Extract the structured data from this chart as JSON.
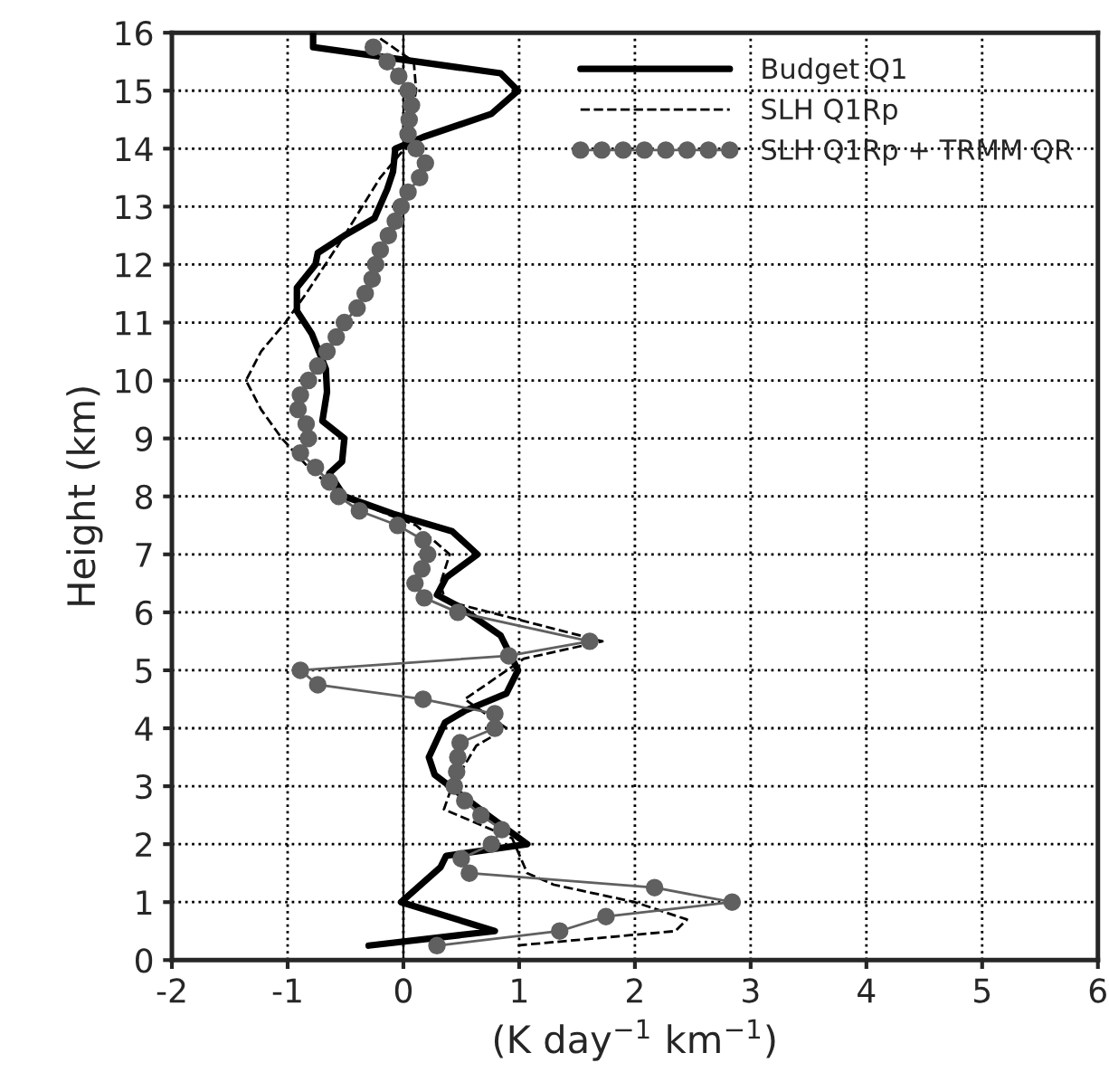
{
  "chart_data": {
    "type": "line",
    "xlabel": "(K day$^{−1}$ km$^{−1}$)",
    "ylabel": "Height (km)",
    "xlim": [
      -2,
      6
    ],
    "xticks": [
      -2,
      -1,
      0,
      1,
      2,
      3,
      4,
      5,
      6
    ],
    "ylim": [
      0,
      16
    ],
    "yticks": [
      0,
      1,
      2,
      3,
      4,
      5,
      6,
      7,
      8,
      9,
      10,
      11,
      12,
      13,
      14,
      15,
      16
    ],
    "grid": true,
    "legend": "top right",
    "ref_lines": [
      {
        "axis": "x",
        "value": 0,
        "color": "#000000",
        "line_style": "solid"
      }
    ],
    "series": [
      {
        "name": "Budget Q1",
        "color": "#000000",
        "line_style": "solid",
        "marker": "none",
        "x": [
          -0.78,
          -0.78,
          0.84,
          0.99,
          0.76,
          0.17,
          -0.07,
          -0.09,
          -0.14,
          -0.25,
          -0.51,
          -0.74,
          -0.76,
          -0.92,
          -0.92,
          -0.79,
          -0.67,
          -0.66,
          -0.7,
          -0.51,
          -0.53,
          -0.64,
          -0.51,
          -0.09,
          0.42,
          0.64,
          0.37,
          0.29,
          0.48,
          0.84,
          0.99,
          0.89,
          0.53,
          0.36,
          0.22,
          0.27,
          0.73,
          1.07,
          0.37,
          0.32,
          -0.02,
          0.79,
          -0.3
        ],
        "values": [
          16,
          15.75,
          15.3,
          15,
          14.6,
          14.2,
          14,
          13.6,
          13.3,
          12.8,
          12.5,
          12.2,
          12,
          11.6,
          11.2,
          10.8,
          10.2,
          9.8,
          9.3,
          9,
          8.6,
          8.4,
          8,
          7.7,
          7.4,
          7,
          6.6,
          6.3,
          6.1,
          5.6,
          5,
          4.6,
          4.3,
          4.1,
          3.5,
          3.2,
          2.5,
          2,
          1.8,
          1.6,
          1,
          0.5,
          0.25
        ]
      },
      {
        "name": "SLH Q1Rp",
        "color": "#000000",
        "line_style": "dashed",
        "marker": "none",
        "x": [
          -0.2,
          0.09,
          0.11,
          0.06,
          0.01,
          -0.2,
          -0.51,
          -0.84,
          -1.02,
          -1.23,
          -1.36,
          -1.23,
          -1.05,
          -0.82,
          -0.53,
          0.11,
          0.4,
          0.32,
          0.36,
          1.72,
          1.04,
          0.53,
          0.89,
          0.63,
          0.42,
          0.35,
          0.94,
          1.07,
          1.3,
          2,
          2.45,
          2.35,
          0.97
        ],
        "values": [
          15.9,
          15.5,
          15,
          14.5,
          14,
          13.5,
          12.5,
          11.5,
          11,
          10.5,
          10,
          9.5,
          9,
          8.5,
          8,
          7.5,
          7,
          6.5,
          6.2,
          5.5,
          5.2,
          4.5,
          4,
          3.7,
          3,
          2.6,
          2.1,
          1.5,
          1.3,
          1,
          0.7,
          0.5,
          0.25
        ]
      },
      {
        "name": "SLH Q1Rp + TRMM QR",
        "color": "#606060",
        "line_style": "solid",
        "marker": "circle",
        "x": [
          -0.26,
          -0.14,
          -0.04,
          0.04,
          0.07,
          0.05,
          0.04,
          0.11,
          0.19,
          0.14,
          0.04,
          -0.02,
          -0.07,
          -0.13,
          -0.2,
          -0.24,
          -0.27,
          -0.33,
          -0.4,
          -0.51,
          -0.58,
          -0.66,
          -0.74,
          -0.82,
          -0.89,
          -0.91,
          -0.84,
          -0.82,
          -0.89,
          -0.76,
          -0.64,
          -0.56,
          -0.38,
          -0.05,
          0.17,
          0.21,
          0.16,
          0.1,
          0.18,
          0.47,
          1.61,
          0.91,
          -0.89,
          -0.74,
          0.17,
          0.79,
          0.79,
          0.49,
          0.47,
          0.46,
          0.44,
          0.53,
          0.67,
          0.85,
          0.76,
          0.5,
          0.57,
          2.17,
          2.84,
          1.75,
          1.35,
          0.29
        ],
        "values": [
          15.75,
          15.5,
          15.25,
          15,
          14.75,
          14.5,
          14.25,
          14,
          13.75,
          13.5,
          13.25,
          13,
          12.75,
          12.5,
          12.25,
          12,
          11.75,
          11.5,
          11.25,
          11,
          10.75,
          10.5,
          10.25,
          10,
          9.75,
          9.5,
          9.25,
          9,
          8.75,
          8.5,
          8.25,
          8,
          7.75,
          7.5,
          7.25,
          7,
          6.75,
          6.5,
          6.25,
          6,
          5.5,
          5.25,
          5,
          4.75,
          4.5,
          4.25,
          4,
          3.75,
          3.5,
          3.25,
          3,
          2.75,
          2.5,
          2.25,
          2,
          1.75,
          1.5,
          1.25,
          1,
          0.75,
          0.5,
          0.25
        ]
      }
    ]
  }
}
